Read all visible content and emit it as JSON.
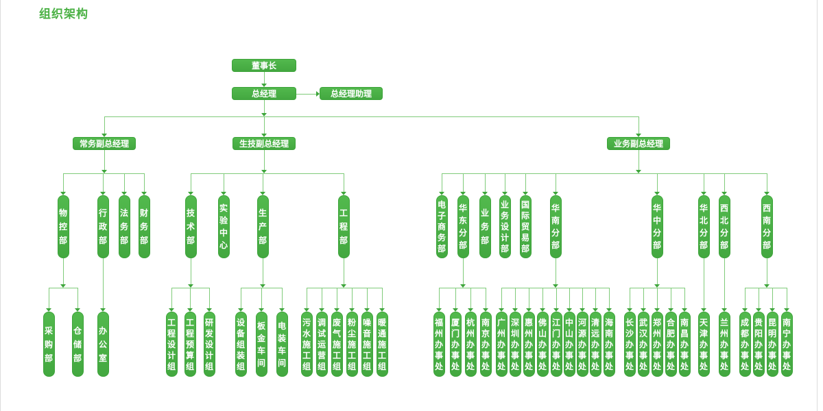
{
  "page": {
    "title": "组织架构"
  },
  "colors": {
    "background": "#FFFFFF",
    "title_text": "#4BB145",
    "node_fill_top": "#52B94D",
    "node_fill_bottom": "#43A840",
    "node_border": "#3CA339",
    "node_text": "#FFFFFF",
    "connector_line": "#7FCB79",
    "connector_arrow": "#3FA63C",
    "page_edge": "#DBDBDB"
  },
  "org": {
    "chairman": {
      "label": "董事长"
    },
    "general_manager": {
      "label": "总经理"
    },
    "gm_assistant": {
      "label": "总经理助理"
    },
    "deputies": [
      {
        "label": "常务副总经理",
        "departments": [
          {
            "label": "物控部",
            "children": [
              {
                "label": "采购部"
              },
              {
                "label": "仓储部"
              }
            ]
          },
          {
            "label": "行政部",
            "children": [
              {
                "label": "办公室"
              }
            ]
          },
          {
            "label": "法务部",
            "children": []
          },
          {
            "label": "财务部",
            "children": []
          }
        ]
      },
      {
        "label": "生技副总经理",
        "departments": [
          {
            "label": "技术部",
            "children": [
              {
                "label": "工程设计组"
              },
              {
                "label": "工程预算组"
              },
              {
                "label": "研发设计组"
              }
            ]
          },
          {
            "label": "实验中心",
            "children": []
          },
          {
            "label": "生产部",
            "children": [
              {
                "label": "设备组装组"
              },
              {
                "label": "板金车间"
              },
              {
                "label": "电装车间"
              }
            ]
          },
          {
            "label": "工程部",
            "children": [
              {
                "label": "污水施工组"
              },
              {
                "label": "调试运营组"
              },
              {
                "label": "废气施工组"
              },
              {
                "label": "粉尘施工组"
              },
              {
                "label": "噪音施工组"
              },
              {
                "label": "暖通施工组"
              }
            ]
          }
        ]
      },
      {
        "label": "业务副总经理",
        "departments": [
          {
            "label": "电子商务部",
            "children": []
          },
          {
            "label": "华东分部",
            "children": [
              {
                "label": "福州办事处"
              },
              {
                "label": "厦门办事处"
              },
              {
                "label": "杭州办事处"
              },
              {
                "label": "南京办事处"
              }
            ]
          },
          {
            "label": "业务部",
            "children": []
          },
          {
            "label": "业务设计部",
            "children": []
          },
          {
            "label": "国际贸易部",
            "children": []
          },
          {
            "label": "华南分部",
            "children": [
              {
                "label": "广州办事处"
              },
              {
                "label": "深圳办事处"
              },
              {
                "label": "惠州办事处"
              },
              {
                "label": "佛山办事处"
              },
              {
                "label": "江门办事处"
              },
              {
                "label": "中山办事处"
              },
              {
                "label": "河源办事处"
              },
              {
                "label": "清远办事处"
              },
              {
                "label": "海南办事处"
              }
            ]
          },
          {
            "label": "华中分部",
            "children": [
              {
                "label": "长沙办事处"
              },
              {
                "label": "武汉办事处"
              },
              {
                "label": "郑州办事处"
              },
              {
                "label": "合肥办事处"
              },
              {
                "label": "南昌办事处"
              }
            ]
          },
          {
            "label": "华北分部",
            "children": [
              {
                "label": "天津办事处"
              }
            ]
          },
          {
            "label": "西北分部",
            "children": [
              {
                "label": "兰州办事处"
              }
            ]
          },
          {
            "label": "西南分部",
            "children": [
              {
                "label": "成都办事处"
              },
              {
                "label": "贵阳办事处"
              },
              {
                "label": "昆明办事处"
              },
              {
                "label": "南宁办事处"
              }
            ]
          }
        ]
      }
    ]
  }
}
